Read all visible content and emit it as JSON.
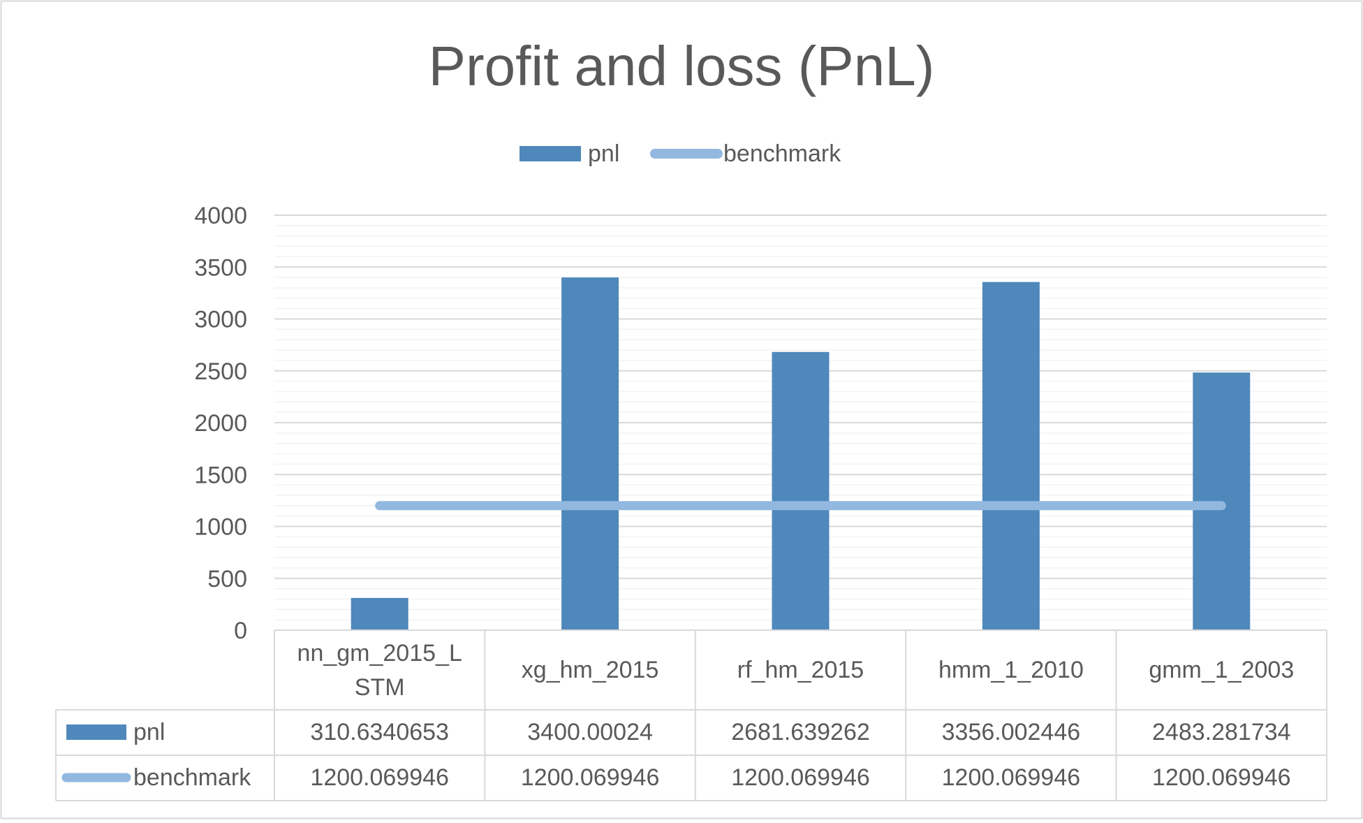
{
  "chart_data": {
    "type": "bar",
    "title": "Profit and loss (PnL)",
    "categories": [
      [
        "nn_gm_2015_L",
        "STM"
      ],
      [
        "xg_hm_2015"
      ],
      [
        "rf_hm_2015"
      ],
      [
        "hmm_1_2010"
      ],
      [
        "gmm_1_2003"
      ]
    ],
    "series": [
      {
        "name": "pnl",
        "kind": "bar",
        "color": "#4F88BB",
        "values": [
          310.6340653,
          3400.00024,
          2681.639262,
          3356.002446,
          2483.281734
        ],
        "labels": [
          "310.6340653",
          "3400.00024",
          "2681.639262",
          "3356.002446",
          "2483.281734"
        ]
      },
      {
        "name": "benchmark",
        "kind": "line",
        "color": "#92B8E0",
        "values": [
          1200.069946,
          1200.069946,
          1200.069946,
          1200.069946,
          1200.069946
        ],
        "labels": [
          "1200.069946",
          "1200.069946",
          "1200.069946",
          "1200.069946",
          "1200.069946"
        ]
      }
    ],
    "yticks": [
      "0",
      "500",
      "1000",
      "1500",
      "2000",
      "2500",
      "3000",
      "3500",
      "4000"
    ],
    "ylim": [
      0,
      4000
    ],
    "ytick_step": 500,
    "minor_step": 100,
    "legend_position": "top",
    "grid": true,
    "data_table": true
  }
}
